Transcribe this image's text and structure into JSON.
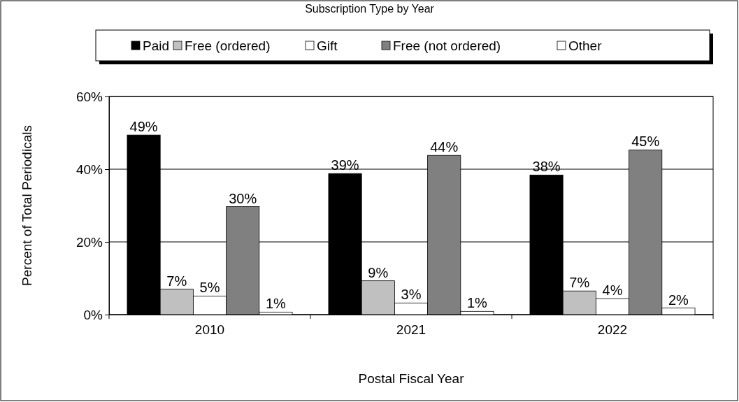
{
  "chart_data": {
    "type": "bar",
    "title": "Subscription Type by Year",
    "xlabel": "Postal Fiscal Year",
    "ylabel": "Percent of Total Periodicals",
    "categories": [
      "2010",
      "2021",
      "2022"
    ],
    "series": [
      {
        "name": "Paid",
        "color": "#000000",
        "values": [
          49.4,
          38.8,
          38.4
        ],
        "value_labels": [
          "49%",
          "39%",
          "38%"
        ]
      },
      {
        "name": "Free (ordered)",
        "color": "#c0c0c0",
        "values": [
          7.0,
          9.3,
          6.5
        ],
        "value_labels": [
          "7%",
          "9%",
          "7%"
        ]
      },
      {
        "name": "Gift",
        "color": "#ffffff",
        "values": [
          5.1,
          3.2,
          4.4
        ],
        "value_labels": [
          "5%",
          "3%",
          "4%"
        ]
      },
      {
        "name": "Free (not ordered)",
        "color": "#808080",
        "values": [
          29.7,
          43.8,
          45.3
        ],
        "value_labels": [
          "30%",
          "44%",
          "45%"
        ]
      },
      {
        "name": "Other",
        "color": "#ffffff",
        "values": [
          0.7,
          0.9,
          1.8
        ],
        "value_labels": [
          "1%",
          "1%",
          "2%"
        ]
      }
    ],
    "ylim": [
      0,
      60
    ],
    "yticks": [
      {
        "value": 0,
        "label": "0%"
      },
      {
        "value": 20,
        "label": "20%"
      },
      {
        "value": 40,
        "label": "40%"
      },
      {
        "value": 60,
        "label": "60%"
      }
    ],
    "grid": "y",
    "legend": "top"
  }
}
